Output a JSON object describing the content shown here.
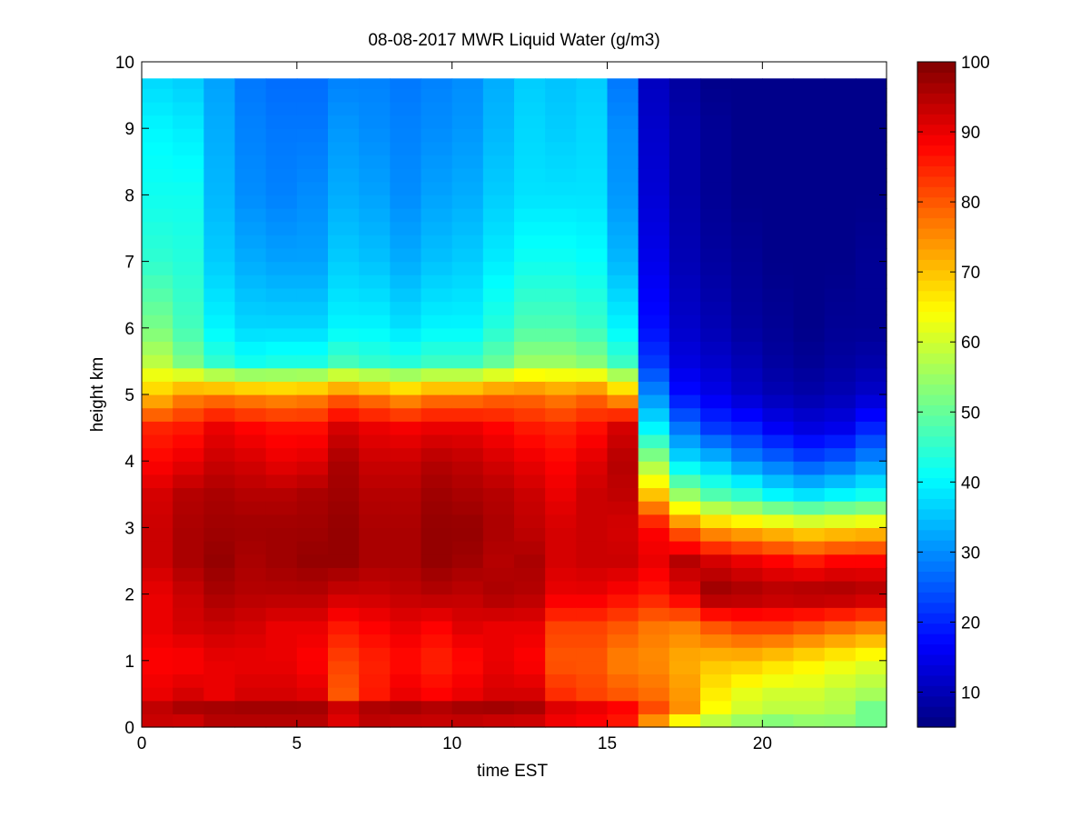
{
  "chart_data": {
    "type": "heatmap",
    "title": "08-08-2017 MWR Liquid Water (g/m3)",
    "xlabel": "time EST",
    "ylabel": "height km",
    "xlim": [
      0,
      24
    ],
    "ylim": [
      0,
      10
    ],
    "xticks": [
      "0",
      "5",
      "10",
      "15",
      "20"
    ],
    "yticks": [
      "0",
      "1",
      "2",
      "3",
      "4",
      "5",
      "6",
      "7",
      "8",
      "9",
      "10"
    ],
    "colorbar": {
      "min": 5,
      "max": 100,
      "ticks": [
        "10",
        "20",
        "30",
        "40",
        "50",
        "60",
        "70",
        "80",
        "90",
        "100"
      ],
      "colormap": "jet"
    },
    "x": [
      0.5,
      1.5,
      2.5,
      3.5,
      4.5,
      5.5,
      6.5,
      7.5,
      8.5,
      9.5,
      10.5,
      11.5,
      12.5,
      13.5,
      14.5,
      15.5,
      16.5,
      17.5,
      18.5,
      19.5,
      20.5,
      21.5,
      22.5,
      23.5
    ],
    "y": [
      0.0,
      0.25,
      0.5,
      1.0,
      1.5,
      2.0,
      2.5,
      3.0,
      3.5,
      4.0,
      4.5,
      5.0,
      5.5,
      6.0,
      7.0,
      8.0,
      9.0,
      9.75
    ],
    "z_note": "each row = one time step, values at the heights in y",
    "z": [
      [
        92,
        95,
        90,
        88,
        90,
        90,
        93,
        93,
        92,
        88,
        85,
        70,
        58,
        52,
        45,
        42,
        40,
        37
      ],
      [
        90,
        97,
        92,
        88,
        92,
        93,
        96,
        96,
        95,
        90,
        86,
        75,
        52,
        47,
        44,
        42,
        39,
        36
      ],
      [
        93,
        98,
        90,
        90,
        93,
        96,
        98,
        97,
        96,
        93,
        90,
        76,
        45,
        40,
        36,
        34,
        33,
        32
      ],
      [
        93,
        98,
        92,
        90,
        92,
        95,
        96,
        97,
        95,
        92,
        88,
        75,
        42,
        37,
        33,
        30,
        29,
        28
      ],
      [
        93,
        98,
        92,
        90,
        90,
        95,
        97,
        97,
        95,
        90,
        87,
        74,
        43,
        37,
        32,
        29,
        28,
        27
      ],
      [
        93,
        98,
        91,
        88,
        90,
        95,
        98,
        97,
        96,
        91,
        87,
        75,
        43,
        37,
        32,
        30,
        28,
        27
      ],
      [
        88,
        96,
        80,
        82,
        86,
        93,
        98,
        98,
        97,
        96,
        92,
        78,
        47,
        40,
        36,
        33,
        31,
        29
      ],
      [
        92,
        98,
        86,
        85,
        88,
        93,
        96,
        96,
        95,
        93,
        90,
        76,
        45,
        40,
        35,
        32,
        30,
        29
      ],
      [
        91,
        98,
        90,
        87,
        90,
        94,
        96,
        96,
        95,
        93,
        89,
        73,
        44,
        38,
        33,
        30,
        29,
        28
      ],
      [
        91,
        97,
        88,
        85,
        88,
        95,
        98,
        98,
        97,
        95,
        90,
        76,
        46,
        40,
        35,
        32,
        30,
        29
      ],
      [
        91,
        98,
        90,
        87,
        91,
        94,
        97,
        98,
        96,
        94,
        90,
        76,
        46,
        40,
        36,
        33,
        31,
        30
      ],
      [
        90,
        98,
        92,
        90,
        90,
        96,
        95,
        96,
        95,
        92,
        88,
        78,
        50,
        44,
        39,
        36,
        34,
        33
      ],
      [
        90,
        97,
        92,
        88,
        90,
        95,
        96,
        94,
        93,
        90,
        86,
        78,
        55,
        48,
        42,
        38,
        37,
        36
      ],
      [
        87,
        93,
        84,
        80,
        82,
        90,
        92,
        92,
        90,
        88,
        85,
        76,
        55,
        48,
        42,
        38,
        36,
        35
      ],
      [
        86,
        92,
        82,
        80,
        82,
        90,
        93,
        93,
        93,
        91,
        87,
        78,
        53,
        46,
        41,
        38,
        37,
        36
      ],
      [
        84,
        90,
        80,
        76,
        80,
        88,
        93,
        92,
        94,
        95,
        92,
        72,
        46,
        40,
        34,
        31,
        30,
        28
      ],
      [
        70,
        82,
        78,
        75,
        77,
        86,
        90,
        88,
        70,
        55,
        40,
        30,
        22,
        18,
        15,
        13,
        12,
        11
      ],
      [
        58,
        75,
        74,
        72,
        76,
        90,
        95,
        78,
        55,
        38,
        28,
        18,
        14,
        12,
        10,
        9,
        9,
        8
      ],
      [
        55,
        64,
        66,
        70,
        80,
        98,
        92,
        72,
        48,
        35,
        22,
        15,
        12,
        10,
        8,
        7,
        7,
        6
      ],
      [
        52,
        60,
        62,
        70,
        82,
        97,
        90,
        70,
        45,
        30,
        20,
        12,
        10,
        8,
        7,
        6,
        6,
        6
      ],
      [
        50,
        58,
        60,
        68,
        82,
        96,
        88,
        68,
        40,
        27,
        16,
        10,
        8,
        7,
        6,
        6,
        6,
        6
      ],
      [
        52,
        58,
        60,
        66,
        80,
        97,
        86,
        66,
        38,
        24,
        14,
        9,
        7,
        6,
        6,
        6,
        6,
        6
      ],
      [
        52,
        57,
        58,
        64,
        78,
        97,
        88,
        67,
        40,
        26,
        15,
        10,
        8,
        7,
        6,
        6,
        6,
        6
      ],
      [
        52,
        50,
        56,
        62,
        76,
        96,
        88,
        68,
        42,
        30,
        20,
        12,
        9,
        7,
        7,
        6,
        6,
        6
      ]
    ]
  }
}
